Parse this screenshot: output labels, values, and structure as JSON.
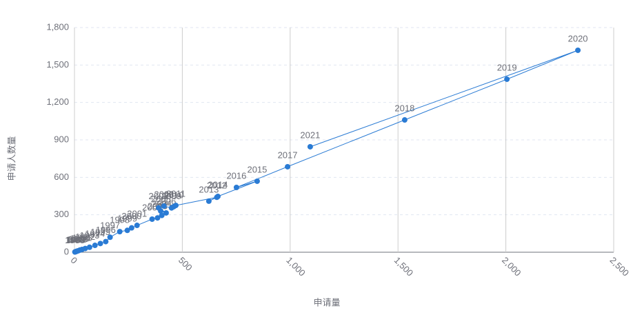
{
  "chart_data": {
    "type": "scatter",
    "x_label": "申请量",
    "y_label": "申请人数量",
    "x": [
      2,
      5,
      8,
      12,
      18,
      25,
      35,
      50,
      70,
      95,
      120,
      145,
      165,
      210,
      245,
      265,
      290,
      360,
      385,
      405,
      400,
      425,
      390,
      415,
      450,
      460,
      470,
      660,
      623,
      665,
      847,
      751,
      988,
      1531,
      2005,
      2334,
      1093
    ],
    "values": [
      2,
      4,
      6,
      9,
      12,
      17,
      22,
      30,
      40,
      55,
      70,
      85,
      120,
      165,
      175,
      195,
      215,
      265,
      275,
      295,
      330,
      315,
      355,
      370,
      355,
      365,
      375,
      440,
      409,
      447,
      569,
      519,
      685,
      1060,
      1386,
      1618,
      845
    ],
    "labels": [
      "1985",
      "1986",
      "1987",
      "1988",
      "1989",
      "1990",
      "1991",
      "1992",
      "1993",
      "1994",
      "1995",
      "1996",
      "1997",
      "1998",
      "1999",
      "2000",
      "2001",
      "2002",
      "2003",
      "2004",
      "2005",
      "2006",
      "2007",
      "2008",
      "2009",
      "2010",
      "2011",
      "2012",
      "2013",
      "2014",
      "2015",
      "2016",
      "2017",
      "2018",
      "2019",
      "2020",
      "2021"
    ],
    "color": "#2a7bd4",
    "xlim": [
      0,
      2500
    ],
    "xticks": [
      0,
      500,
      {
        "value": 1000,
        "label": "1,000"
      },
      {
        "value": 1500,
        "label": "1,500"
      },
      {
        "value": 2000,
        "label": "2,000"
      },
      {
        "value": 2500,
        "label": "2,500"
      }
    ],
    "ylim": [
      0,
      1800
    ],
    "yticks": [
      0,
      300,
      600,
      900,
      {
        "value": 1200,
        "label": "1,200"
      },
      {
        "value": 1500,
        "label": "1,500"
      },
      {
        "value": 1800,
        "label": "1,800"
      }
    ],
    "grid": true
  }
}
